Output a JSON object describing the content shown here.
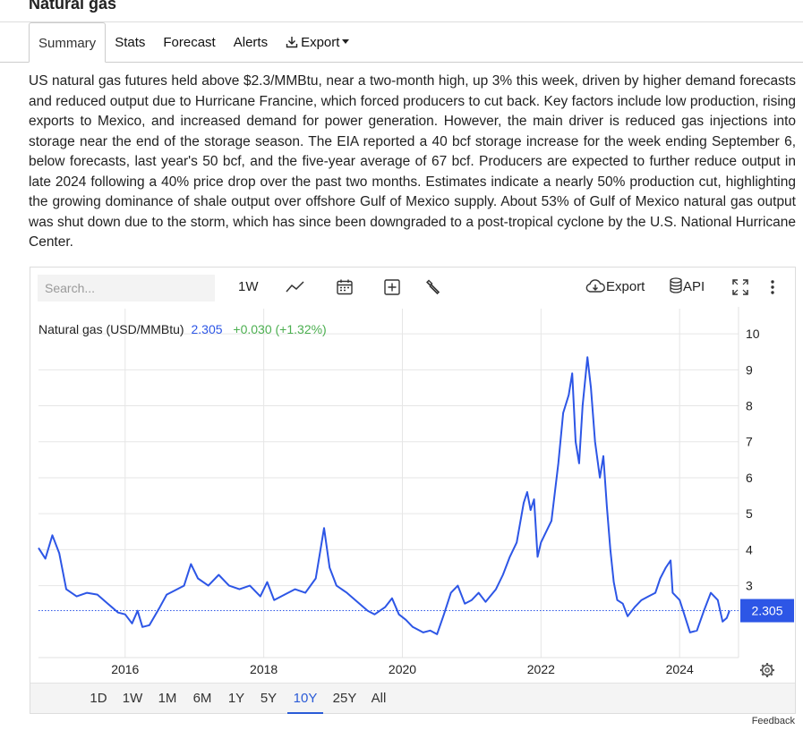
{
  "page": {
    "title": "Natural gas"
  },
  "tabs": [
    {
      "label": "Summary",
      "active": true
    },
    {
      "label": "Stats"
    },
    {
      "label": "Forecast"
    },
    {
      "label": "Alerts"
    },
    {
      "label": "Export"
    }
  ],
  "summary": "US natural gas futures held above $2.3/MMBtu, near a two-month high, up 3% this week, driven by higher demand forecasts and reduced output due to Hurricane Francine, which forced producers to cut back. Key factors include low production, rising exports to Mexico, and increased demand for power generation. However, the main driver is reduced gas injections into storage near the end of the storage season. The EIA reported a 40 bcf storage increase for the week ending September 6, below forecasts, last year's 50 bcf, and the five-year average of 67 bcf. Producers are expected to further reduce output in late 2024 following a 40% price drop over the past two months. Estimates indicate a nearly 50% production cut, highlighting the growing dominance of shale output over offshore Gulf of Mexico supply. About 53% of Gulf of Mexico natural gas output was shut down due to the storm, which has since been downgraded to a post-tropical cyclone by the U.S. National Hurricane Center.",
  "toolbar": {
    "search_placeholder": "Search...",
    "interval": "1W",
    "export_label": "Export",
    "api_label": "API",
    "icons": [
      "line-chart-icon",
      "calendar-icon",
      "add-box-icon",
      "wrench-icon",
      "cloud-download-icon",
      "database-icon",
      "fullscreen-icon",
      "more-vertical-icon"
    ]
  },
  "legend": {
    "name": "Natural gas (USD/MMBtu)",
    "value": "2.305",
    "change": "+0.030 (+1.32%)"
  },
  "colors": {
    "line": "#2d56e6",
    "value": "#2d56e6",
    "change": "#4caf50",
    "badge": "#2d56e6",
    "active_range": "#2a5bd7"
  },
  "chart_data": {
    "type": "line",
    "series": [
      {
        "name": "Natural gas (USD/MMBtu)",
        "points": [
          [
            2014.75,
            4.05
          ],
          [
            2014.85,
            3.75
          ],
          [
            2014.95,
            4.4
          ],
          [
            2015.05,
            3.9
          ],
          [
            2015.15,
            2.9
          ],
          [
            2015.3,
            2.7
          ],
          [
            2015.45,
            2.8
          ],
          [
            2015.6,
            2.75
          ],
          [
            2015.75,
            2.5
          ],
          [
            2015.9,
            2.25
          ],
          [
            2016.0,
            2.2
          ],
          [
            2016.1,
            1.95
          ],
          [
            2016.18,
            2.3
          ],
          [
            2016.25,
            1.85
          ],
          [
            2016.35,
            1.9
          ],
          [
            2016.5,
            2.4
          ],
          [
            2016.6,
            2.75
          ],
          [
            2016.7,
            2.85
          ],
          [
            2016.85,
            3.0
          ],
          [
            2016.95,
            3.6
          ],
          [
            2017.05,
            3.2
          ],
          [
            2017.2,
            3.0
          ],
          [
            2017.35,
            3.3
          ],
          [
            2017.5,
            3.0
          ],
          [
            2017.65,
            2.9
          ],
          [
            2017.8,
            3.0
          ],
          [
            2017.95,
            2.7
          ],
          [
            2018.05,
            3.1
          ],
          [
            2018.15,
            2.6
          ],
          [
            2018.3,
            2.75
          ],
          [
            2018.45,
            2.9
          ],
          [
            2018.6,
            2.8
          ],
          [
            2018.75,
            3.2
          ],
          [
            2018.87,
            4.6
          ],
          [
            2018.95,
            3.5
          ],
          [
            2019.05,
            3.0
          ],
          [
            2019.2,
            2.8
          ],
          [
            2019.35,
            2.55
          ],
          [
            2019.5,
            2.3
          ],
          [
            2019.6,
            2.2
          ],
          [
            2019.75,
            2.4
          ],
          [
            2019.85,
            2.65
          ],
          [
            2019.95,
            2.2
          ],
          [
            2020.05,
            2.05
          ],
          [
            2020.15,
            1.85
          ],
          [
            2020.3,
            1.7
          ],
          [
            2020.4,
            1.75
          ],
          [
            2020.5,
            1.65
          ],
          [
            2020.6,
            2.2
          ],
          [
            2020.7,
            2.8
          ],
          [
            2020.8,
            3.0
          ],
          [
            2020.9,
            2.5
          ],
          [
            2021.0,
            2.6
          ],
          [
            2021.1,
            2.8
          ],
          [
            2021.2,
            2.55
          ],
          [
            2021.35,
            2.9
          ],
          [
            2021.45,
            3.3
          ],
          [
            2021.55,
            3.8
          ],
          [
            2021.65,
            4.2
          ],
          [
            2021.75,
            5.3
          ],
          [
            2021.8,
            5.6
          ],
          [
            2021.85,
            5.1
          ],
          [
            2021.9,
            5.4
          ],
          [
            2021.95,
            3.8
          ],
          [
            2022.0,
            4.2
          ],
          [
            2022.1,
            4.6
          ],
          [
            2022.15,
            4.8
          ],
          [
            2022.25,
            6.4
          ],
          [
            2022.32,
            7.8
          ],
          [
            2022.4,
            8.3
          ],
          [
            2022.45,
            8.9
          ],
          [
            2022.5,
            7.0
          ],
          [
            2022.55,
            6.4
          ],
          [
            2022.6,
            8.0
          ],
          [
            2022.67,
            9.35
          ],
          [
            2022.72,
            8.5
          ],
          [
            2022.78,
            7.0
          ],
          [
            2022.85,
            6.0
          ],
          [
            2022.9,
            6.6
          ],
          [
            2022.95,
            5.2
          ],
          [
            2023.0,
            4.0
          ],
          [
            2023.05,
            3.1
          ],
          [
            2023.1,
            2.6
          ],
          [
            2023.18,
            2.5
          ],
          [
            2023.25,
            2.15
          ],
          [
            2023.35,
            2.4
          ],
          [
            2023.45,
            2.6
          ],
          [
            2023.55,
            2.7
          ],
          [
            2023.65,
            2.8
          ],
          [
            2023.72,
            3.2
          ],
          [
            2023.8,
            3.5
          ],
          [
            2023.87,
            3.7
          ],
          [
            2023.9,
            2.8
          ],
          [
            2024.0,
            2.6
          ],
          [
            2024.05,
            2.3
          ],
          [
            2024.15,
            1.7
          ],
          [
            2024.25,
            1.75
          ],
          [
            2024.35,
            2.3
          ],
          [
            2024.45,
            2.8
          ],
          [
            2024.55,
            2.6
          ],
          [
            2024.62,
            2.0
          ],
          [
            2024.68,
            2.1
          ],
          [
            2024.72,
            2.305
          ]
        ]
      }
    ],
    "last_value": "2.305",
    "x_ticks": [
      "2016",
      "2018",
      "2020",
      "2022",
      "2024"
    ],
    "y_ticks": [
      "3",
      "4",
      "5",
      "6",
      "7",
      "8",
      "9",
      "10"
    ],
    "xlim": [
      2014.75,
      2024.85
    ],
    "ylim": [
      1.0,
      10.5
    ],
    "grid": true,
    "legend": "top-left"
  },
  "range_buttons": [
    {
      "label": "1D"
    },
    {
      "label": "1W"
    },
    {
      "label": "1M"
    },
    {
      "label": "6M"
    },
    {
      "label": "1Y"
    },
    {
      "label": "5Y"
    },
    {
      "label": "10Y",
      "active": true
    },
    {
      "label": "25Y"
    },
    {
      "label": "All"
    }
  ],
  "feedback": "Feedback"
}
